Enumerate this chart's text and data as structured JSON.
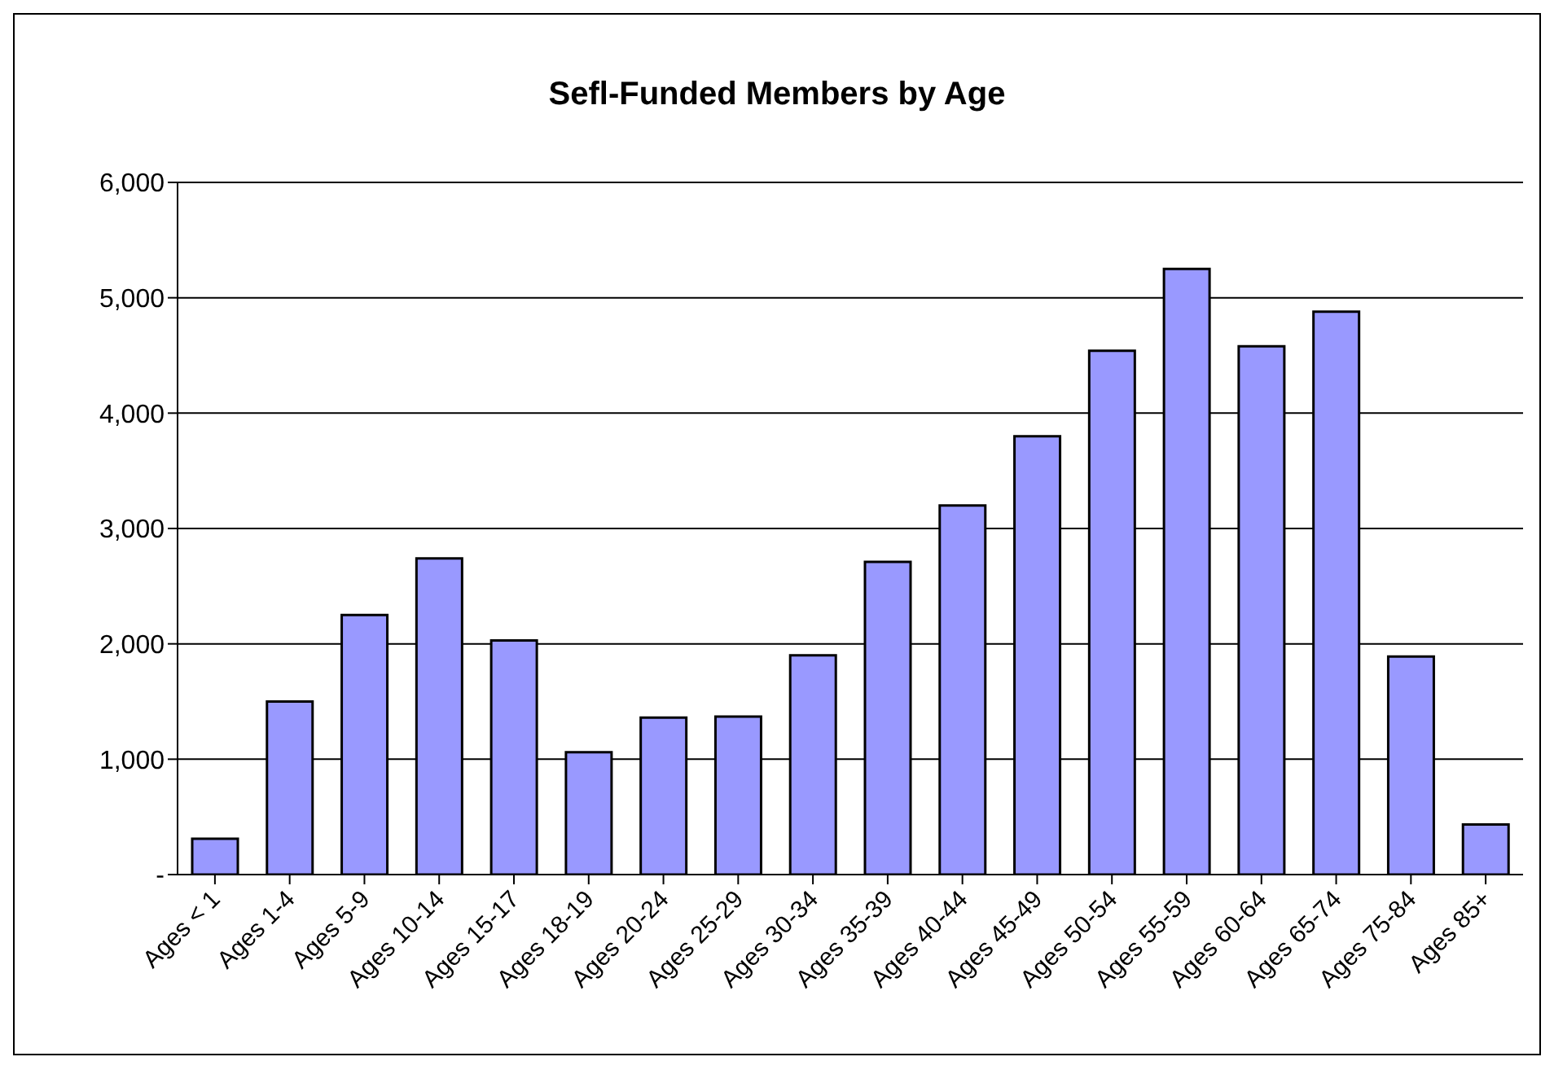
{
  "chart_data": {
    "type": "bar",
    "title": "Sefl-Funded Members by Age",
    "categories": [
      "Ages < 1",
      "Ages 1-4",
      "Ages 5-9",
      "Ages 10-14",
      "Ages 15-17",
      "Ages 18-19",
      "Ages 20-24",
      "Ages 25-29",
      "Ages 30-34",
      "Ages 35-39",
      "Ages 40-44",
      "Ages 45-49",
      "Ages 50-54",
      "Ages 55-59",
      "Ages 60-64",
      "Ages 65-74",
      "Ages 75-84",
      "Ages 85+"
    ],
    "values": [
      310,
      1500,
      2250,
      2740,
      2030,
      1060,
      1360,
      1370,
      1900,
      2710,
      3200,
      3800,
      4540,
      5250,
      4580,
      4880,
      1890,
      435
    ],
    "color": "#9999ff",
    "ylim": [
      0,
      6000
    ],
    "yticks": [
      {
        "value": 0,
        "label": "-"
      },
      {
        "value": 1000,
        "label": "1,000"
      },
      {
        "value": 2000,
        "label": "2,000"
      },
      {
        "value": 3000,
        "label": "3,000"
      },
      {
        "value": 4000,
        "label": "4,000"
      },
      {
        "value": 5000,
        "label": "5,000"
      },
      {
        "value": 6000,
        "label": "6,000"
      }
    ],
    "grid": "y",
    "legend": false
  }
}
